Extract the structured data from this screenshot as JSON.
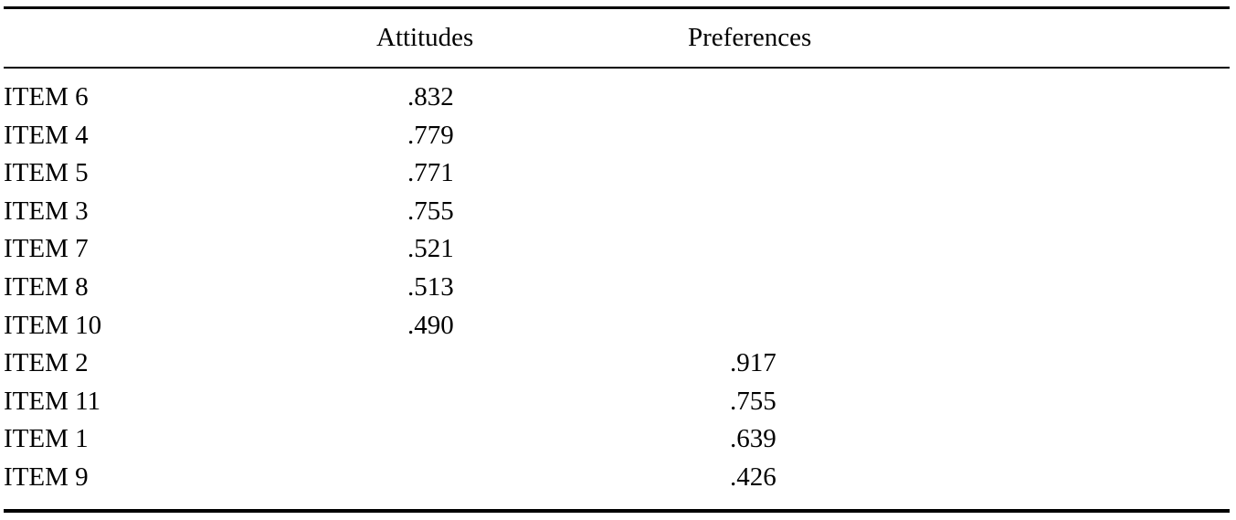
{
  "table": {
    "columns": {
      "item": "",
      "attitudes": "Attitudes",
      "preferences": "Preferences"
    },
    "rows": [
      {
        "item": "ITEM 6",
        "attitudes": ".832",
        "preferences": ""
      },
      {
        "item": "ITEM 4",
        "attitudes": ".779",
        "preferences": ""
      },
      {
        "item": "ITEM 5",
        "attitudes": ".771",
        "preferences": ""
      },
      {
        "item": "ITEM 3",
        "attitudes": ".755",
        "preferences": ""
      },
      {
        "item": "ITEM 7",
        "attitudes": ".521",
        "preferences": ""
      },
      {
        "item": "ITEM 8",
        "attitudes": ".513",
        "preferences": ""
      },
      {
        "item": "ITEM 10",
        "attitudes": ".490",
        "preferences": ""
      },
      {
        "item": "ITEM 2",
        "attitudes": "",
        "preferences": ".917"
      },
      {
        "item": "ITEM 11",
        "attitudes": "",
        "preferences": ".755"
      },
      {
        "item": "ITEM 1",
        "attitudes": "",
        "preferences": ".639"
      },
      {
        "item": "ITEM 9",
        "attitudes": "",
        "preferences": ".426"
      }
    ]
  }
}
